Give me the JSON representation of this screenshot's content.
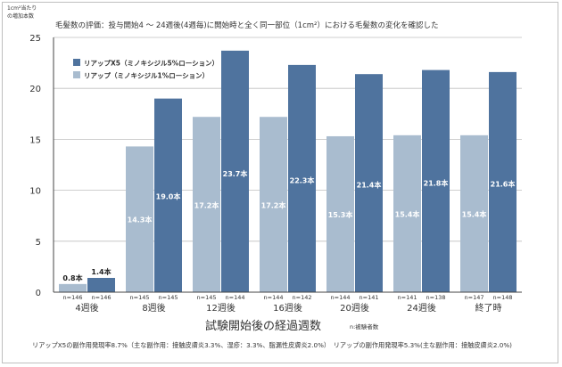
{
  "chart_data": {
    "type": "bar",
    "title": "毛髪数の評価：投与開始4 〜 24週後(4週毎)に開始時と全く同一部位（1cm²）における毛髪数の変化を確認した",
    "ylabel": "1cm²当たりの増加本数",
    "xlabel": "試験開始後の経過週数",
    "n_note": "n:被験者数",
    "ylim": [
      0,
      25
    ],
    "yticks": [
      "0",
      "5",
      "10",
      "15",
      "20",
      "25"
    ],
    "categories": [
      "4週後",
      "8週後",
      "12週後",
      "16週後",
      "20週後",
      "24週後",
      "終了時"
    ],
    "legend_position": "top-left",
    "series": [
      {
        "name": "リアップ（ミノキシジル1%ローション）",
        "color": "#a9bccf",
        "values": [
          0.8,
          14.3,
          17.2,
          17.2,
          15.3,
          15.4,
          15.4
        ],
        "value_labels": [
          "0.8本",
          "14.3本",
          "17.2本",
          "17.2本",
          "15.3本",
          "15.4本",
          "15.4本"
        ],
        "n_labels": [
          "n=146",
          "n=145",
          "n=145",
          "n=144",
          "n=144",
          "n=141",
          "n=147"
        ]
      },
      {
        "name": "リアップX5（ミノキシジル5%ローション）",
        "color": "#4f739e",
        "values": [
          1.4,
          19.0,
          23.7,
          22.3,
          21.4,
          21.8,
          21.6
        ],
        "value_labels": [
          "1.4本",
          "19.0本",
          "23.7本",
          "22.3本",
          "21.4本",
          "21.8本",
          "21.6本"
        ],
        "n_labels": [
          "n=146",
          "n=145",
          "n=144",
          "n=142",
          "n=141",
          "n=138",
          "n=148"
        ]
      }
    ]
  },
  "footnote": "リアップX5の副作用発現率8.7%（主な副作用：接触皮膚炎3.3%、湿疹：3.3%、脂漏性皮膚炎2.0%）　リアップの副作用発現率5.3%(主な副作用：接触皮膚炎2.0%)"
}
